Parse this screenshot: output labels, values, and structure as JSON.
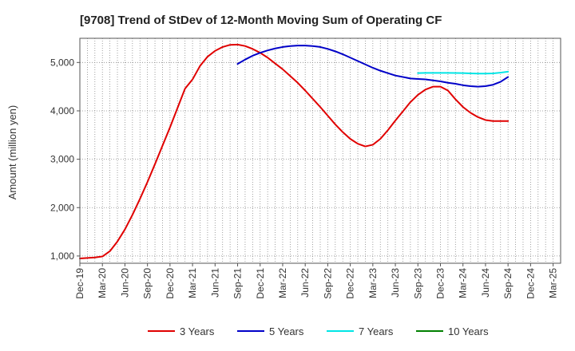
{
  "chart_data": {
    "type": "line",
    "title": "[9708]  Trend of StDev of 12-Month Moving Sum of Operating CF",
    "xlabel": "",
    "ylabel": "Amount (million yen)",
    "ylim": [
      850,
      5500
    ],
    "yticks": [
      1000,
      2000,
      3000,
      4000,
      5000
    ],
    "ytick_labels": [
      "1,000",
      "2,000",
      "3,000",
      "4,000",
      "5,000"
    ],
    "xlim": [
      0,
      64
    ],
    "xticks": [
      0,
      3,
      6,
      9,
      12,
      15,
      18,
      21,
      24,
      27,
      30,
      33,
      36,
      39,
      42,
      45,
      48,
      51,
      54,
      57,
      60,
      63
    ],
    "xtick_labels": [
      "Dec-19",
      "Mar-20",
      "Jun-20",
      "Sep-20",
      "Dec-20",
      "Mar-21",
      "Jun-21",
      "Sep-21",
      "Dec-21",
      "Mar-22",
      "Jun-22",
      "Sep-22",
      "Dec-22",
      "Mar-23",
      "Jun-23",
      "Sep-23",
      "Dec-23",
      "Mar-24",
      "Jun-24",
      "Sep-24",
      "Dec-24",
      "Mar-25"
    ],
    "grid": true,
    "legend": "bottom",
    "series": [
      {
        "name": "3 Years",
        "color": "#e00000",
        "x": [
          0,
          1,
          2,
          3,
          4,
          5,
          6,
          7,
          8,
          9,
          10,
          11,
          12,
          13,
          14,
          15,
          16,
          17,
          18,
          19,
          20,
          21,
          22,
          23,
          24,
          25,
          26,
          27,
          28,
          29,
          30,
          31,
          32,
          33,
          34,
          35,
          36,
          37,
          38,
          39,
          40,
          41,
          42,
          43,
          44,
          45,
          46,
          47,
          48,
          49,
          50,
          51,
          52,
          53,
          54,
          55,
          56,
          57
        ],
        "values": [
          950,
          960,
          970,
          990,
          1100,
          1300,
          1550,
          1850,
          2180,
          2530,
          2900,
          3280,
          3660,
          4060,
          4460,
          4650,
          4930,
          5120,
          5240,
          5320,
          5365,
          5370,
          5340,
          5280,
          5200,
          5100,
          4980,
          4860,
          4720,
          4580,
          4420,
          4250,
          4080,
          3900,
          3720,
          3560,
          3420,
          3320,
          3265,
          3300,
          3420,
          3600,
          3800,
          3990,
          4180,
          4330,
          4440,
          4500,
          4500,
          4420,
          4240,
          4080,
          3960,
          3870,
          3810,
          3790,
          3790,
          3790
        ]
      },
      {
        "name": "5 Years",
        "color": "#0000c8",
        "x": [
          21,
          22,
          23,
          24,
          25,
          26,
          27,
          28,
          29,
          30,
          31,
          32,
          33,
          34,
          35,
          36,
          37,
          38,
          39,
          40,
          41,
          42,
          43,
          44,
          45,
          46,
          47,
          48,
          49,
          50,
          51,
          52,
          53,
          54,
          55,
          56,
          57
        ],
        "values": [
          4970,
          5060,
          5140,
          5200,
          5250,
          5290,
          5320,
          5340,
          5350,
          5350,
          5340,
          5320,
          5280,
          5230,
          5170,
          5100,
          5030,
          4960,
          4890,
          4830,
          4780,
          4730,
          4700,
          4670,
          4660,
          4650,
          4630,
          4610,
          4580,
          4560,
          4530,
          4510,
          4500,
          4510,
          4540,
          4600,
          4700
        ]
      },
      {
        "name": "7 Years",
        "color": "#00e5e5",
        "x": [
          45,
          46,
          47,
          48,
          49,
          50,
          51,
          52,
          53,
          54,
          55,
          56,
          57
        ],
        "values": [
          4780,
          4785,
          4785,
          4785,
          4785,
          4782,
          4780,
          4775,
          4770,
          4770,
          4775,
          4790,
          4810
        ]
      },
      {
        "name": "10 Years",
        "color": "#008000",
        "x": [],
        "values": []
      }
    ]
  }
}
